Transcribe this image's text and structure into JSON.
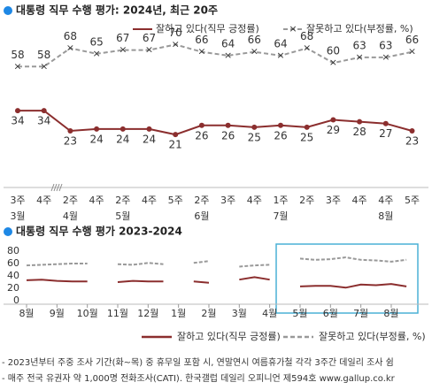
{
  "chart_data": [
    {
      "type": "line",
      "title": "대통령 직무 수행 평가: 2024년, 최근 20주",
      "categories": [
        "3주",
        "4주",
        "2주",
        "4주",
        "2주",
        "4주",
        "5주",
        "2주",
        "3주",
        "4주",
        "1주",
        "2주",
        "3주",
        "4주",
        "4주",
        "5주"
      ],
      "months": [
        {
          "value": 0,
          "label": "3월"
        },
        {
          "value": 2,
          "label": "4월"
        },
        {
          "value": 4,
          "label": "5월"
        },
        {
          "value": 7,
          "label": "6월"
        },
        {
          "value": 10,
          "label": "7월"
        },
        {
          "value": 14,
          "label": "8월"
        }
      ],
      "ylim": [
        10,
        75
      ],
      "series": [
        {
          "name": "잘하고 있다(직무 긍정률)",
          "color": "#8b2e2e",
          "values": [
            34,
            34,
            23,
            24,
            24,
            24,
            21,
            26,
            26,
            25,
            26,
            25,
            29,
            28,
            27,
            23
          ]
        },
        {
          "name": "잘못하고 있다(부정률, %)",
          "color": "#999999",
          "values": [
            58,
            58,
            68,
            65,
            67,
            67,
            70,
            66,
            64,
            66,
            64,
            68,
            60,
            63,
            63,
            66
          ]
        }
      ]
    },
    {
      "type": "line",
      "title": "대통령 직무 수행 평가 2023-2024",
      "x": [
        0,
        0.5,
        1,
        1.5,
        2,
        2.5,
        3,
        3.5,
        4,
        4.5,
        5,
        5.5,
        6,
        6.5,
        7,
        7.5,
        8,
        8.5,
        9,
        9.5,
        10,
        10.5,
        11,
        11.5,
        12,
        12.5
      ],
      "xticks": [
        {
          "value": 0,
          "label": "8월"
        },
        {
          "value": 1,
          "label": "9월"
        },
        {
          "value": 2,
          "label": "10월"
        },
        {
          "value": 3,
          "label": "11월"
        },
        {
          "value": 4,
          "label": "12월"
        },
        {
          "value": 5,
          "label": "1월"
        },
        {
          "value": 6,
          "label": "2월"
        },
        {
          "value": 7,
          "label": "3월"
        },
        {
          "value": 8,
          "label": "4월"
        },
        {
          "value": 9,
          "label": "5월"
        },
        {
          "value": 10,
          "label": "6월"
        },
        {
          "value": 11,
          "label": "7월"
        },
        {
          "value": 12,
          "label": "8월"
        }
      ],
      "xlim": [
        0,
        12.7
      ],
      "ylim": [
        0,
        80
      ],
      "yticks": [
        0,
        20,
        40,
        60,
        80
      ],
      "grid": false,
      "series": [
        {
          "name": "잘하고 있다(직무 긍정률)",
          "color": "#8b2e2e",
          "values": [
            33,
            34,
            32,
            31,
            31,
            null,
            30,
            32,
            31,
            31,
            null,
            31,
            29,
            null,
            34,
            38,
            34,
            null,
            23,
            24,
            24,
            21,
            26,
            25,
            27,
            23
          ]
        },
        {
          "name": "잘못하고 있다(부정률, %)",
          "color": "#999999",
          "values": [
            57,
            58,
            59,
            60,
            60,
            null,
            59,
            58,
            61,
            59,
            null,
            61,
            64,
            null,
            55,
            57,
            58,
            null,
            68,
            66,
            67,
            70,
            66,
            65,
            63,
            66
          ]
        }
      ]
    }
  ],
  "notes": [
    "- 2023년부터 주중 조사 기간(화~목) 중 휴무일 포함 시, 연말연시 여름휴가철 각각 3주간 데일리 조사 쉼",
    "- 매주 전국 유권자 약 1,000명 전화조사(CATI). 한국갤럽 데일리 오피니언 제594호 www.gallup.co.kr"
  ]
}
